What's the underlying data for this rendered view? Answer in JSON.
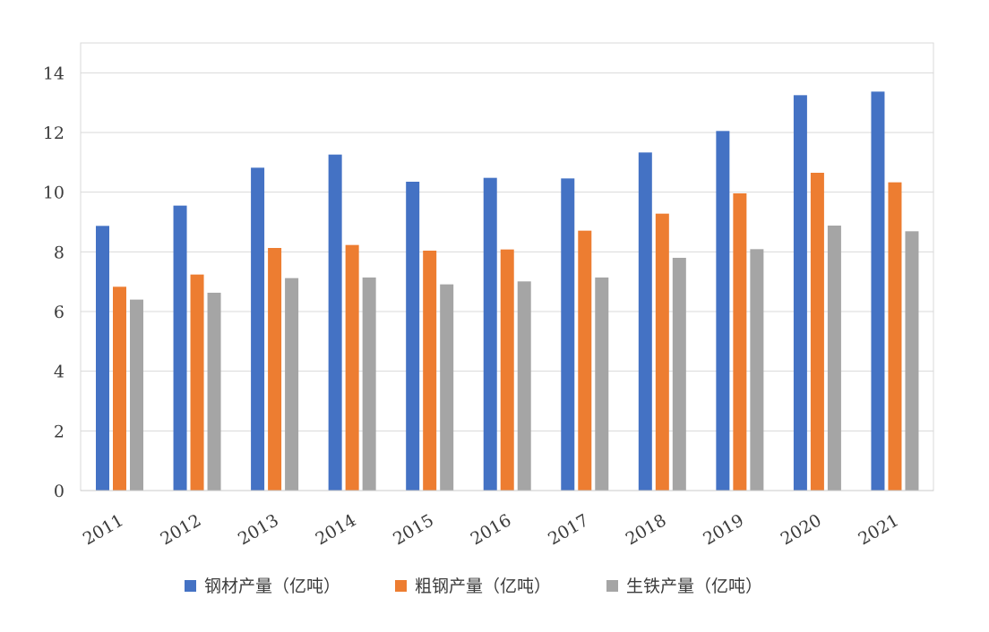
{
  "chart_data": {
    "type": "bar",
    "title": "",
    "xlabel": "",
    "ylabel": "",
    "categories": [
      "2011",
      "2012",
      "2013",
      "2014",
      "2015",
      "2016",
      "2017",
      "2018",
      "2019",
      "2020",
      "2021"
    ],
    "ylim": [
      0,
      15
    ],
    "yticks": [
      0,
      2,
      4,
      6,
      8,
      10,
      12,
      14
    ],
    "grid": true,
    "legend_position": "bottom",
    "series": [
      {
        "name": "钢材产量（亿吨）",
        "color": "#4472C4",
        "values": [
          8.87,
          9.55,
          10.82,
          11.26,
          10.35,
          10.48,
          10.46,
          11.33,
          12.05,
          13.25,
          13.37
        ]
      },
      {
        "name": "粗钢产量（亿吨）",
        "color": "#ED7D31",
        "values": [
          6.83,
          7.24,
          8.13,
          8.23,
          8.04,
          8.08,
          8.71,
          9.28,
          9.96,
          10.65,
          10.33
        ]
      },
      {
        "name": "生铁产量（亿吨）",
        "color": "#A5A5A5",
        "values": [
          6.4,
          6.63,
          7.12,
          7.14,
          6.91,
          7.01,
          7.14,
          7.8,
          8.09,
          8.88,
          8.69
        ]
      }
    ]
  }
}
